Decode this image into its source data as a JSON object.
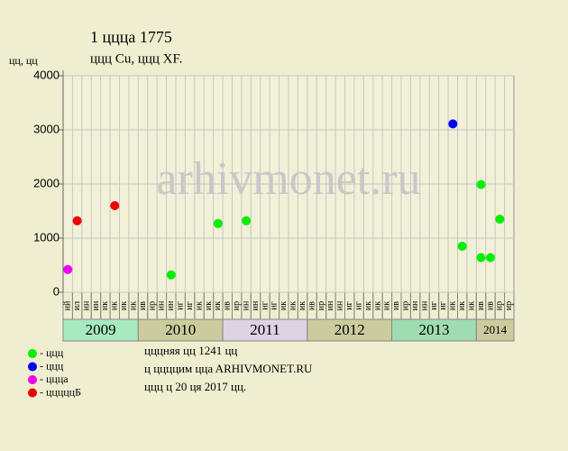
{
  "chart_data": {
    "type": "scatter",
    "title": "1 цццa 1775",
    "subtitle": "ццц Cu, ццц XF.",
    "y_label": "цц, цц",
    "watermark": "arhivmonet.ru",
    "years": [
      {
        "label": "2009",
        "color": "#a8eac0",
        "months": [
          "ий",
          "ил",
          "ин",
          "ин",
          "ик",
          "ик",
          "ик",
          "ик"
        ]
      },
      {
        "label": "2010",
        "color": "#cbcb9e",
        "months": [
          "ив",
          "ир",
          "ин",
          "ин",
          "иг",
          "иг",
          "ик",
          "ик",
          "ик"
        ]
      },
      {
        "label": "2011",
        "color": "#ddd3e3",
        "months": [
          "ив",
          "ир",
          "ин",
          "ин",
          "иг",
          "иг",
          "ик",
          "ик",
          "ик"
        ]
      },
      {
        "label": "2012",
        "color": "#cbcb9e",
        "months": [
          "ив",
          "ир",
          "ин",
          "ин",
          "иг",
          "иг",
          "ик",
          "ик",
          "ик"
        ]
      },
      {
        "label": "2013",
        "color": "#a0dcb2",
        "months": [
          "ив",
          "ир",
          "ин",
          "ин",
          "иг",
          "иг",
          "ик",
          "ик",
          "ик"
        ]
      },
      {
        "label": "2014",
        "color": "#cbcb9e",
        "months": [
          "ив",
          "ив",
          "ир",
          "ир"
        ]
      }
    ],
    "series": [
      {
        "name": "- ццц",
        "color": "#00ee00",
        "values": [
          null,
          null,
          null,
          null,
          null,
          null,
          null,
          null,
          null,
          null,
          null,
          320,
          null,
          null,
          null,
          null,
          1270,
          null,
          null,
          1320,
          null,
          null,
          null,
          null,
          null,
          null,
          null,
          null,
          null,
          null,
          null,
          null,
          null,
          null,
          null,
          null,
          null,
          null,
          null,
          null,
          null,
          null,
          850,
          null,
          640,
          640,
          1350,
          null
        ]
      },
      {
        "name": "- ццц",
        "color": "#0000ee",
        "values": [
          null,
          null,
          null,
          null,
          null,
          null,
          null,
          null,
          null,
          null,
          null,
          null,
          null,
          null,
          null,
          null,
          null,
          null,
          null,
          null,
          null,
          null,
          null,
          null,
          null,
          null,
          null,
          null,
          null,
          null,
          null,
          null,
          null,
          null,
          null,
          null,
          null,
          null,
          null,
          null,
          null,
          3110,
          null,
          null,
          null,
          null,
          null,
          null
        ]
      },
      {
        "name": "- цццa",
        "color": "#ee00ee",
        "values": [
          420,
          null,
          null,
          null,
          null,
          null,
          null,
          null,
          null,
          null,
          null,
          null,
          null,
          null,
          null,
          null,
          null,
          null,
          null,
          null,
          null,
          null,
          null,
          null,
          null,
          null,
          null,
          null,
          null,
          null,
          null,
          null,
          null,
          null,
          null,
          null,
          null,
          null,
          null,
          null,
          null,
          null,
          null,
          null,
          null,
          null,
          null,
          null
        ]
      },
      {
        "name": "- цццццБ",
        "color": "#ee0000",
        "values": [
          null,
          1320,
          null,
          null,
          null,
          1600,
          null,
          null,
          null,
          null,
          null,
          null,
          null,
          null,
          null,
          null,
          null,
          null,
          null,
          null,
          null,
          null,
          null,
          null,
          null,
          null,
          null,
          null,
          null,
          null,
          null,
          null,
          null,
          null,
          null,
          null,
          null,
          null,
          null,
          null,
          null,
          null,
          null,
          null,
          null,
          null,
          null,
          null
        ]
      },
      {
        "color": "#00ee00",
        "values": [
          null,
          null,
          null,
          null,
          null,
          null,
          null,
          null,
          null,
          null,
          null,
          null,
          null,
          null,
          null,
          null,
          null,
          null,
          null,
          null,
          null,
          null,
          null,
          null,
          null,
          null,
          null,
          null,
          null,
          null,
          null,
          null,
          null,
          null,
          null,
          null,
          null,
          null,
          null,
          null,
          null,
          null,
          null,
          null,
          1990,
          null,
          null,
          null
        ]
      }
    ],
    "ylim": [
      0,
      4000
    ],
    "yticks": [
      0,
      1000,
      2000,
      3000,
      4000
    ],
    "grid": true,
    "notes": [
      "цццняя цц 1241 цц",
      "ц ццццим ццa ARHIVMONET.RU",
      "ццц ц 20 ця 2017 цц."
    ]
  }
}
